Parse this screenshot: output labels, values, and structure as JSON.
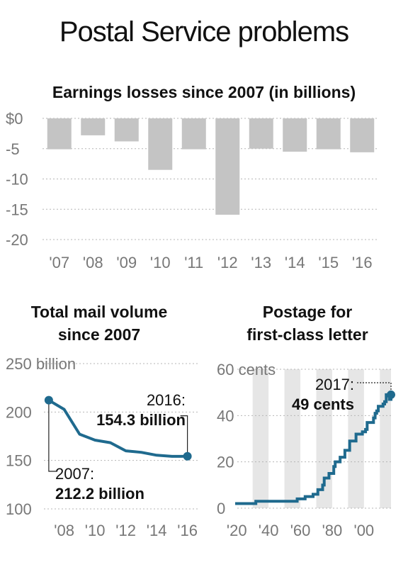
{
  "title": "Postal Service problems",
  "chart_data": [
    {
      "type": "bar",
      "title": "Earnings losses since 2007 (in billions)",
      "categories": [
        "'07",
        "'08",
        "'09",
        "'10",
        "'11",
        "'12",
        "'13",
        "'14",
        "'15",
        "'16"
      ],
      "values": [
        -5.1,
        -2.8,
        -3.8,
        -8.5,
        -5.1,
        -15.9,
        -5.0,
        -5.5,
        -5.1,
        -5.6
      ],
      "ylim": [
        -20,
        0
      ],
      "yticks": [
        0,
        -5,
        -10,
        -15,
        -20
      ],
      "ytick_labels": [
        "$0",
        "-5",
        "-10",
        "-15",
        "-20"
      ],
      "bar_color": "#c4c4c4",
      "grid": true
    },
    {
      "type": "line",
      "title": "Total mail volume since 2007",
      "x": [
        2007,
        2008,
        2009,
        2010,
        2011,
        2012,
        2013,
        2014,
        2015,
        2016
      ],
      "y": [
        212.2,
        202.7,
        177.1,
        171.0,
        168.3,
        159.9,
        158.4,
        155.4,
        154.2,
        154.3
      ],
      "xlim": [
        2006.5,
        2016.8
      ],
      "ylim": [
        100,
        250
      ],
      "xticks": [
        2008,
        2010,
        2012,
        2014,
        2016
      ],
      "xtick_labels": [
        "'08",
        "'10",
        "'12",
        "'14",
        "'16"
      ],
      "yticks": [
        250,
        200,
        150,
        100
      ],
      "ytick_labels": [
        "250 billion",
        "200",
        "150",
        "100"
      ],
      "line_color": "#1f6a8e",
      "annotations": [
        {
          "label": "2007:",
          "value": "212.2 billion"
        },
        {
          "label": "2016:",
          "value": "154.3 billion"
        }
      ],
      "grid": true
    },
    {
      "type": "line",
      "title": "Postage for first-class letter",
      "step": true,
      "x": [
        1919,
        1932,
        1958,
        1963,
        1968,
        1971,
        1974,
        1975,
        1978,
        1981,
        1981.9,
        1985,
        1988,
        1991,
        1995,
        1999,
        2001,
        2002,
        2006,
        2007,
        2008,
        2009,
        2012,
        2013,
        2014,
        2016,
        2017
      ],
      "y": [
        2,
        3,
        4,
        5,
        6,
        8,
        10,
        13,
        15,
        18,
        20,
        22,
        25,
        29,
        32,
        33,
        34,
        37,
        39,
        41,
        42,
        44,
        45,
        46,
        49,
        47,
        49
      ],
      "xlim": [
        1919,
        2017
      ],
      "ylim": [
        0,
        60
      ],
      "xticks": [
        1920,
        1940,
        1960,
        1980,
        2000
      ],
      "xtick_labels": [
        "'20",
        "'40",
        "'60",
        "'80",
        "'00"
      ],
      "yticks": [
        60,
        40,
        20,
        0
      ],
      "ytick_labels": [
        "60 cents",
        "40",
        "20",
        "0"
      ],
      "line_color": "#1f6a8e",
      "shaded_decades": [
        [
          1930,
          1940
        ],
        [
          1950,
          1960
        ],
        [
          1970,
          1980
        ],
        [
          1990,
          2000
        ],
        [
          2010,
          2017
        ]
      ],
      "annotations": [
        {
          "label": "2017:",
          "value": "49 cents"
        }
      ],
      "grid": true
    }
  ]
}
